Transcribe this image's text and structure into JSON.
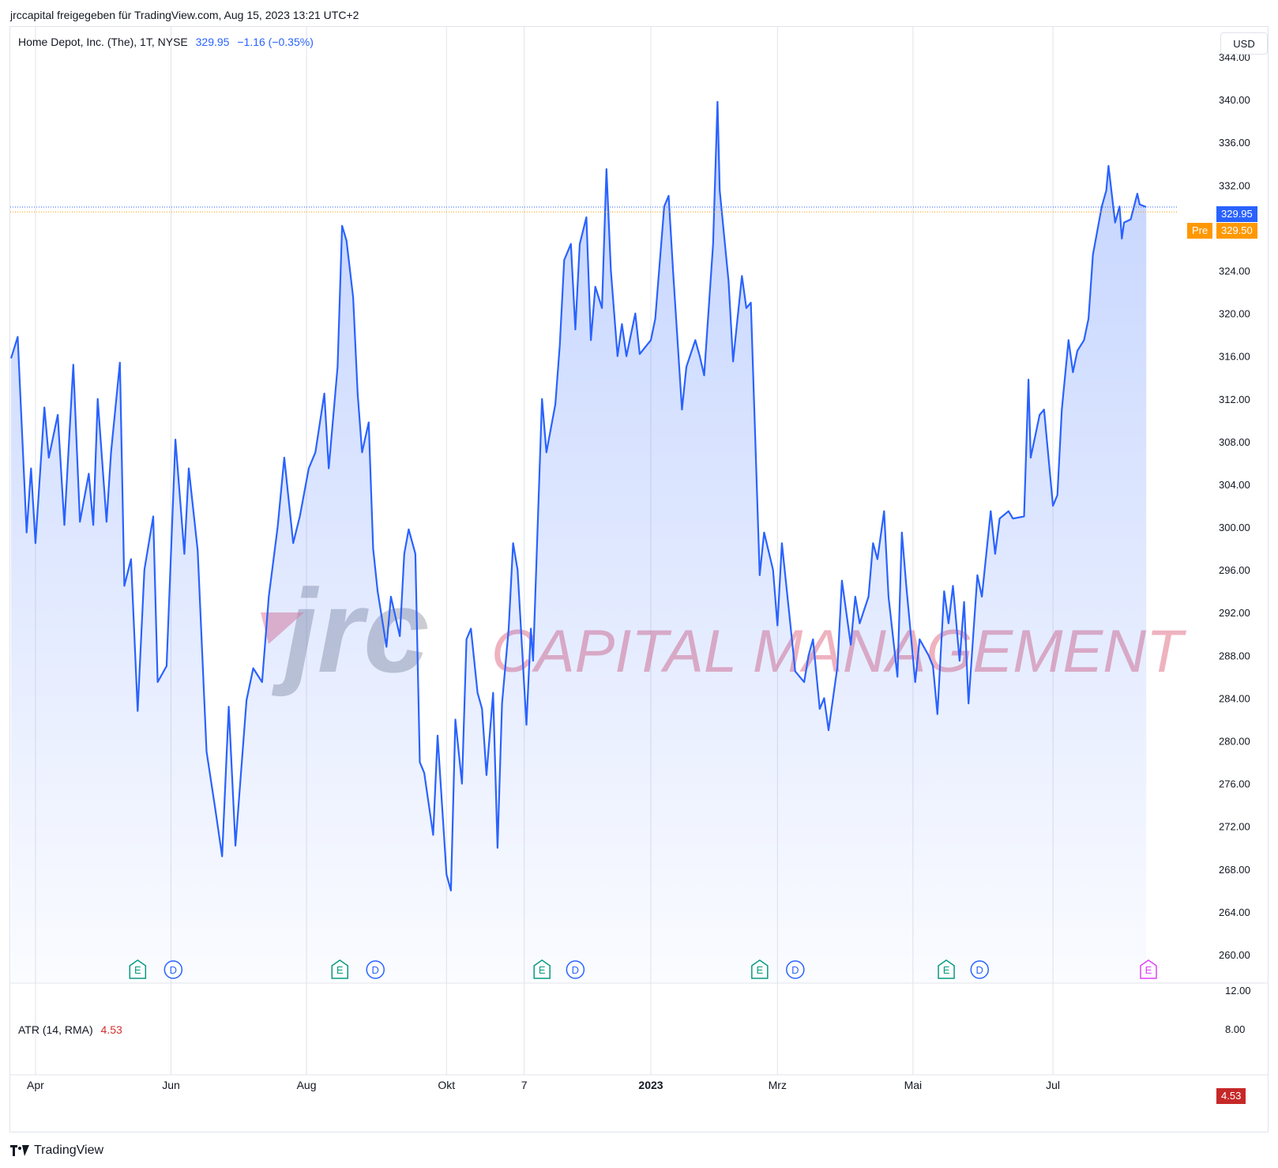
{
  "header": {
    "caption": "jrccapital freigegeben für TradingView.com, Aug 15, 2023 13:21 UTC+2"
  },
  "legend": {
    "symbol": "Home Depot, Inc. (The), 1T, NYSE",
    "price": "329.95",
    "change": "−1.16 (−0.35%)"
  },
  "currency": "USD",
  "atr": {
    "label": "ATR (14, RMA)",
    "value": "4.53"
  },
  "price_tag": {
    "value": "329.95",
    "color": "#2962ff"
  },
  "pre_tag": {
    "label": "Pre",
    "value": "329.50",
    "color": "#ff9800"
  },
  "atr_tag": {
    "value": "4.53",
    "color": "#c62828"
  },
  "watermark": {
    "logo_text": "jrc",
    "tagline": "CAPITAL MANAGEMENT"
  },
  "brand": "TradingView",
  "events": [
    {
      "type": "E",
      "date": "2022-05-17",
      "color": "#089981"
    },
    {
      "type": "D",
      "date": "2022-06-02",
      "color": "#2962ff"
    },
    {
      "type": "E",
      "date": "2022-08-16",
      "color": "#089981"
    },
    {
      "type": "D",
      "date": "2022-09-01",
      "color": "#2962ff"
    },
    {
      "type": "E",
      "date": "2022-11-15",
      "color": "#089981"
    },
    {
      "type": "D",
      "date": "2022-11-30",
      "color": "#2962ff"
    },
    {
      "type": "E",
      "date": "2023-02-21",
      "color": "#089981"
    },
    {
      "type": "D",
      "date": "2023-03-09",
      "color": "#2962ff"
    },
    {
      "type": "E",
      "date": "2023-05-16",
      "color": "#089981"
    },
    {
      "type": "D",
      "date": "2023-05-31",
      "color": "#2962ff"
    },
    {
      "type": "E",
      "date": "2023-08-15",
      "color": "#e040fb"
    }
  ],
  "chart_data": [
    {
      "type": "area",
      "ylim": [
        258,
        346
      ],
      "y_ticks": [
        "260.00",
        "264.00",
        "268.00",
        "272.00",
        "276.00",
        "280.00",
        "284.00",
        "288.00",
        "292.00",
        "296.00",
        "300.00",
        "304.00",
        "308.00",
        "312.00",
        "316.00",
        "320.00",
        "324.00",
        "328.00",
        "332.00",
        "336.00",
        "340.00",
        "344.00"
      ],
      "x_ticks": [
        {
          "label": "Apr",
          "date": "2022-04-01"
        },
        {
          "label": "Jun",
          "date": "2022-06-01"
        },
        {
          "label": "Aug",
          "date": "2022-08-01"
        },
        {
          "label": "Okt",
          "date": "2022-10-03"
        },
        {
          "label": "7",
          "date": "2022-11-07"
        },
        {
          "label": "2023",
          "date": "2023-01-03"
        },
        {
          "label": "Mrz",
          "date": "2023-03-01"
        },
        {
          "label": "Mai",
          "date": "2023-05-01"
        },
        {
          "label": "Jul",
          "date": "2023-07-03"
        }
      ],
      "x_range": [
        "2022-03-21",
        "2023-08-15"
      ],
      "line_color": "#2962ff",
      "grid": true,
      "series": [
        {
          "values": [
            {
              "x": "2022-03-21",
              "y": 315.8
            },
            {
              "x": "2022-03-24",
              "y": 317.8
            },
            {
              "x": "2022-03-28",
              "y": 299.5
            },
            {
              "x": "2022-03-30",
              "y": 305.5
            },
            {
              "x": "2022-04-01",
              "y": 298.5
            },
            {
              "x": "2022-04-05",
              "y": 311.2
            },
            {
              "x": "2022-04-07",
              "y": 306.5
            },
            {
              "x": "2022-04-11",
              "y": 310.5
            },
            {
              "x": "2022-04-14",
              "y": 300.2
            },
            {
              "x": "2022-04-18",
              "y": 315.2
            },
            {
              "x": "2022-04-21",
              "y": 300.5
            },
            {
              "x": "2022-04-25",
              "y": 305.0
            },
            {
              "x": "2022-04-27",
              "y": 300.2
            },
            {
              "x": "2022-04-29",
              "y": 312.0
            },
            {
              "x": "2022-05-03",
              "y": 300.5
            },
            {
              "x": "2022-05-05",
              "y": 307.0
            },
            {
              "x": "2022-05-09",
              "y": 315.4
            },
            {
              "x": "2022-05-11",
              "y": 294.5
            },
            {
              "x": "2022-05-14",
              "y": 297.0
            },
            {
              "x": "2022-05-17",
              "y": 282.8
            },
            {
              "x": "2022-05-20",
              "y": 296.0
            },
            {
              "x": "2022-05-24",
              "y": 301.0
            },
            {
              "x": "2022-05-26",
              "y": 285.5
            },
            {
              "x": "2022-05-30",
              "y": 287.0
            },
            {
              "x": "2022-06-03",
              "y": 308.2
            },
            {
              "x": "2022-06-07",
              "y": 297.5
            },
            {
              "x": "2022-06-09",
              "y": 305.5
            },
            {
              "x": "2022-06-13",
              "y": 297.8
            },
            {
              "x": "2022-06-17",
              "y": 279.0
            },
            {
              "x": "2022-06-21",
              "y": 273.5
            },
            {
              "x": "2022-06-24",
              "y": 269.2
            },
            {
              "x": "2022-06-27",
              "y": 283.2
            },
            {
              "x": "2022-06-30",
              "y": 270.2
            },
            {
              "x": "2022-07-05",
              "y": 283.8
            },
            {
              "x": "2022-07-08",
              "y": 286.8
            },
            {
              "x": "2022-07-12",
              "y": 285.5
            },
            {
              "x": "2022-07-15",
              "y": 293.5
            },
            {
              "x": "2022-07-19",
              "y": 300.0
            },
            {
              "x": "2022-07-22",
              "y": 306.5
            },
            {
              "x": "2022-07-26",
              "y": 298.5
            },
            {
              "x": "2022-07-29",
              "y": 301.0
            },
            {
              "x": "2022-08-02",
              "y": 305.5
            },
            {
              "x": "2022-08-05",
              "y": 307.0
            },
            {
              "x": "2022-08-09",
              "y": 312.5
            },
            {
              "x": "2022-08-11",
              "y": 305.5
            },
            {
              "x": "2022-08-15",
              "y": 315.0
            },
            {
              "x": "2022-08-17",
              "y": 328.2
            },
            {
              "x": "2022-08-19",
              "y": 326.8
            },
            {
              "x": "2022-08-22",
              "y": 321.5
            },
            {
              "x": "2022-08-24",
              "y": 312.5
            },
            {
              "x": "2022-08-26",
              "y": 307.0
            },
            {
              "x": "2022-08-29",
              "y": 309.8
            },
            {
              "x": "2022-08-31",
              "y": 298.0
            },
            {
              "x": "2022-09-02",
              "y": 294.0
            },
            {
              "x": "2022-09-06",
              "y": 288.8
            },
            {
              "x": "2022-09-08",
              "y": 293.5
            },
            {
              "x": "2022-09-12",
              "y": 289.8
            },
            {
              "x": "2022-09-14",
              "y": 297.5
            },
            {
              "x": "2022-09-16",
              "y": 299.8
            },
            {
              "x": "2022-09-19",
              "y": 297.5
            },
            {
              "x": "2022-09-21",
              "y": 278.0
            },
            {
              "x": "2022-09-23",
              "y": 277.0
            },
            {
              "x": "2022-09-27",
              "y": 271.2
            },
            {
              "x": "2022-09-29",
              "y": 280.5
            },
            {
              "x": "2022-10-03",
              "y": 267.5
            },
            {
              "x": "2022-10-05",
              "y": 266.0
            },
            {
              "x": "2022-10-07",
              "y": 282.0
            },
            {
              "x": "2022-10-10",
              "y": 276.0
            },
            {
              "x": "2022-10-12",
              "y": 289.5
            },
            {
              "x": "2022-10-14",
              "y": 290.5
            },
            {
              "x": "2022-10-17",
              "y": 284.5
            },
            {
              "x": "2022-10-19",
              "y": 283.0
            },
            {
              "x": "2022-10-21",
              "y": 276.8
            },
            {
              "x": "2022-10-24",
              "y": 284.5
            },
            {
              "x": "2022-10-26",
              "y": 270.0
            },
            {
              "x": "2022-10-28",
              "y": 283.5
            },
            {
              "x": "2022-10-31",
              "y": 290.5
            },
            {
              "x": "2022-11-02",
              "y": 298.5
            },
            {
              "x": "2022-11-04",
              "y": 296.0
            },
            {
              "x": "2022-11-08",
              "y": 281.5
            },
            {
              "x": "2022-11-10",
              "y": 290.5
            },
            {
              "x": "2022-11-11",
              "y": 287.5
            },
            {
              "x": "2022-11-15",
              "y": 312.0
            },
            {
              "x": "2022-11-17",
              "y": 307.0
            },
            {
              "x": "2022-11-21",
              "y": 311.5
            },
            {
              "x": "2022-11-23",
              "y": 317.0
            },
            {
              "x": "2022-11-25",
              "y": 325.0
            },
            {
              "x": "2022-11-28",
              "y": 326.5
            },
            {
              "x": "2022-11-30",
              "y": 318.5
            },
            {
              "x": "2022-12-02",
              "y": 326.5
            },
            {
              "x": "2022-12-05",
              "y": 329.0
            },
            {
              "x": "2022-12-07",
              "y": 317.5
            },
            {
              "x": "2022-12-09",
              "y": 322.5
            },
            {
              "x": "2022-12-12",
              "y": 320.5
            },
            {
              "x": "2022-12-14",
              "y": 333.5
            },
            {
              "x": "2022-12-16",
              "y": 324.0
            },
            {
              "x": "2022-12-19",
              "y": 316.0
            },
            {
              "x": "2022-12-21",
              "y": 319.0
            },
            {
              "x": "2022-12-23",
              "y": 316.0
            },
            {
              "x": "2022-12-27",
              "y": 320.0
            },
            {
              "x": "2022-12-29",
              "y": 316.2
            },
            {
              "x": "2023-01-03",
              "y": 317.5
            },
            {
              "x": "2023-01-05",
              "y": 319.5
            },
            {
              "x": "2023-01-09",
              "y": 330.0
            },
            {
              "x": "2023-01-11",
              "y": 331.0
            },
            {
              "x": "2023-01-13",
              "y": 324.0
            },
            {
              "x": "2023-01-17",
              "y": 311.0
            },
            {
              "x": "2023-01-19",
              "y": 315.0
            },
            {
              "x": "2023-01-23",
              "y": 317.5
            },
            {
              "x": "2023-01-25",
              "y": 316.0
            },
            {
              "x": "2023-01-27",
              "y": 314.2
            },
            {
              "x": "2023-01-31",
              "y": 326.5
            },
            {
              "x": "2023-02-02",
              "y": 339.8
            },
            {
              "x": "2023-02-03",
              "y": 331.5
            },
            {
              "x": "2023-02-07",
              "y": 323.0
            },
            {
              "x": "2023-02-09",
              "y": 315.5
            },
            {
              "x": "2023-02-13",
              "y": 323.5
            },
            {
              "x": "2023-02-15",
              "y": 320.5
            },
            {
              "x": "2023-02-17",
              "y": 321.0
            },
            {
              "x": "2023-02-21",
              "y": 295.5
            },
            {
              "x": "2023-02-23",
              "y": 299.5
            },
            {
              "x": "2023-02-27",
              "y": 296.0
            },
            {
              "x": "2023-03-01",
              "y": 290.8
            },
            {
              "x": "2023-03-03",
              "y": 298.5
            },
            {
              "x": "2023-03-07",
              "y": 290.5
            },
            {
              "x": "2023-03-09",
              "y": 286.5
            },
            {
              "x": "2023-03-13",
              "y": 285.5
            },
            {
              "x": "2023-03-15",
              "y": 288.0
            },
            {
              "x": "2023-03-17",
              "y": 289.5
            },
            {
              "x": "2023-03-20",
              "y": 283.0
            },
            {
              "x": "2023-03-22",
              "y": 284.0
            },
            {
              "x": "2023-03-24",
              "y": 281.0
            },
            {
              "x": "2023-03-28",
              "y": 287.0
            },
            {
              "x": "2023-03-30",
              "y": 295.0
            },
            {
              "x": "2023-04-03",
              "y": 289.0
            },
            {
              "x": "2023-04-05",
              "y": 293.5
            },
            {
              "x": "2023-04-07",
              "y": 291.0
            },
            {
              "x": "2023-04-11",
              "y": 293.5
            },
            {
              "x": "2023-04-13",
              "y": 298.5
            },
            {
              "x": "2023-04-15",
              "y": 297.0
            },
            {
              "x": "2023-04-18",
              "y": 301.5
            },
            {
              "x": "2023-04-20",
              "y": 293.5
            },
            {
              "x": "2023-04-24",
              "y": 286.0
            },
            {
              "x": "2023-04-26",
              "y": 299.5
            },
            {
              "x": "2023-04-28",
              "y": 294.5
            },
            {
              "x": "2023-05-02",
              "y": 285.5
            },
            {
              "x": "2023-05-04",
              "y": 289.5
            },
            {
              "x": "2023-05-08",
              "y": 288.0
            },
            {
              "x": "2023-05-10",
              "y": 287.0
            },
            {
              "x": "2023-05-12",
              "y": 282.5
            },
            {
              "x": "2023-05-15",
              "y": 294.0
            },
            {
              "x": "2023-05-17",
              "y": 291.0
            },
            {
              "x": "2023-05-19",
              "y": 294.5
            },
            {
              "x": "2023-05-22",
              "y": 287.5
            },
            {
              "x": "2023-05-24",
              "y": 293.0
            },
            {
              "x": "2023-05-26",
              "y": 283.5
            },
            {
              "x": "2023-05-30",
              "y": 295.5
            },
            {
              "x": "2023-06-01",
              "y": 293.5
            },
            {
              "x": "2023-06-05",
              "y": 301.5
            },
            {
              "x": "2023-06-07",
              "y": 297.5
            },
            {
              "x": "2023-06-09",
              "y": 300.8
            },
            {
              "x": "2023-06-13",
              "y": 301.5
            },
            {
              "x": "2023-06-15",
              "y": 300.8
            },
            {
              "x": "2023-06-20",
              "y": 301.0
            },
            {
              "x": "2023-06-22",
              "y": 313.8
            },
            {
              "x": "2023-06-23",
              "y": 306.5
            },
            {
              "x": "2023-06-27",
              "y": 310.5
            },
            {
              "x": "2023-06-29",
              "y": 311.0
            },
            {
              "x": "2023-07-03",
              "y": 302.0
            },
            {
              "x": "2023-07-05",
              "y": 303.0
            },
            {
              "x": "2023-07-07",
              "y": 311.0
            },
            {
              "x": "2023-07-10",
              "y": 317.5
            },
            {
              "x": "2023-07-12",
              "y": 314.5
            },
            {
              "x": "2023-07-14",
              "y": 316.5
            },
            {
              "x": "2023-07-17",
              "y": 317.5
            },
            {
              "x": "2023-07-19",
              "y": 319.5
            },
            {
              "x": "2023-07-21",
              "y": 325.5
            },
            {
              "x": "2023-07-25",
              "y": 330.0
            },
            {
              "x": "2023-07-27",
              "y": 331.5
            },
            {
              "x": "2023-07-28",
              "y": 333.8
            },
            {
              "x": "2023-07-31",
              "y": 328.5
            },
            {
              "x": "2023-08-02",
              "y": 330.0
            },
            {
              "x": "2023-08-03",
              "y": 327.0
            },
            {
              "x": "2023-08-04",
              "y": 328.5
            },
            {
              "x": "2023-08-07",
              "y": 328.8
            },
            {
              "x": "2023-08-10",
              "y": 331.2
            },
            {
              "x": "2023-08-11",
              "y": 330.2
            },
            {
              "x": "2023-08-14",
              "y": 329.95
            }
          ]
        }
      ]
    },
    {
      "type": "line",
      "ylim": [
        4.8,
        13.4
      ],
      "y_ticks": [
        "8.00",
        "12.00"
      ],
      "series": [
        {
          "name": "ATR (14, RMA)",
          "values": []
        }
      ]
    }
  ]
}
